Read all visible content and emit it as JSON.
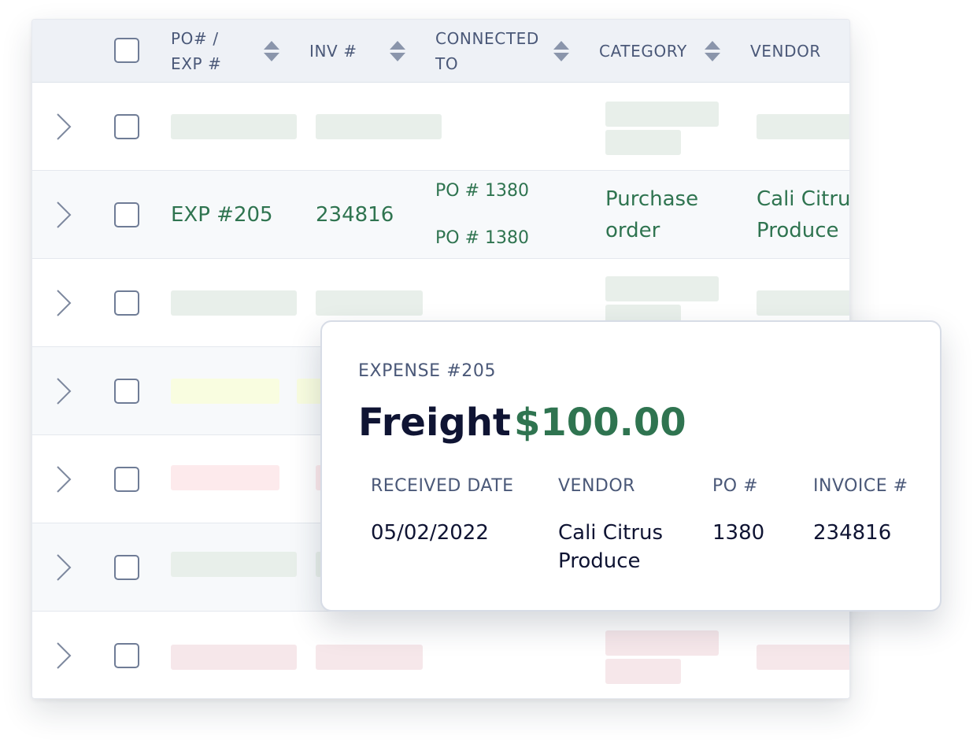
{
  "table": {
    "headers": {
      "po_exp": [
        "PO# /",
        "EXP #"
      ],
      "inv": "INV #",
      "connected_to": [
        "CONNECTED",
        "TO"
      ],
      "category": "CATEGORY",
      "vendor": "VENDOR"
    },
    "highlighted_row": {
      "po_exp": "EXP #205",
      "inv": "234816",
      "connected_to": [
        "PO # 1380",
        "PO # 1380"
      ],
      "category": [
        "Purchase",
        "order"
      ],
      "vendor": [
        "Cali Citrus",
        "Produce"
      ]
    },
    "placeholder_colors": {
      "green": "#e8efea",
      "yellow": "#f9fde0",
      "red": "#fdeaec",
      "pink": "#f6e7ea"
    }
  },
  "popover": {
    "label": "EXPENSE #205",
    "title": "Freight",
    "amount": "$100.00",
    "columns": [
      {
        "header": "RECEIVED DATE",
        "value": "05/02/2022"
      },
      {
        "header": "VENDOR",
        "value": "Cali Citrus Produce"
      },
      {
        "header": "PO #",
        "value": "1380"
      },
      {
        "header": "INVOICE #",
        "value": "234816"
      }
    ]
  },
  "colors": {
    "accent_green": "#2f7450",
    "header_text": "#4a5878",
    "title_text": "#0f1433"
  }
}
